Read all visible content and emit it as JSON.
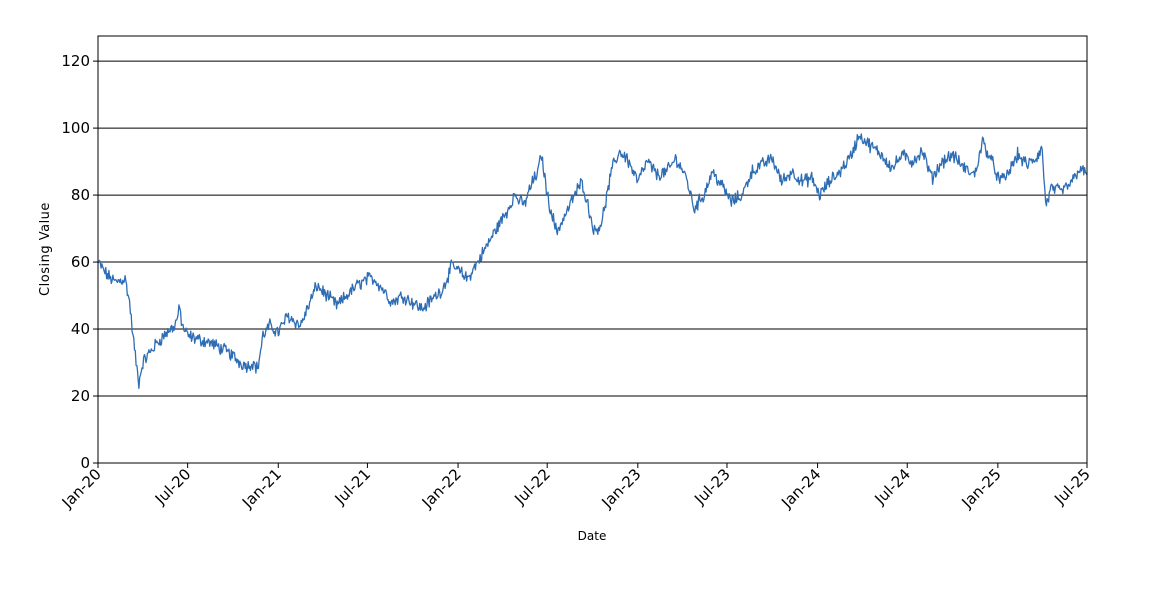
{
  "chart_data": {
    "type": "line",
    "title": "",
    "xlabel": "Date",
    "ylabel": "Closing Value",
    "xlim": [
      "2020-01-01",
      "2025-07-01"
    ],
    "ylim": [
      0,
      127.5
    ],
    "yticks": [
      0,
      20,
      40,
      60,
      80,
      100,
      120
    ],
    "xticks": [
      {
        "label": "Jan-20",
        "date": "2020-01-01"
      },
      {
        "label": "Jul-20",
        "date": "2020-07-01"
      },
      {
        "label": "Jan-21",
        "date": "2021-01-01"
      },
      {
        "label": "Jul-21",
        "date": "2021-07-01"
      },
      {
        "label": "Jan-22",
        "date": "2022-01-01"
      },
      {
        "label": "Jul-22",
        "date": "2022-07-01"
      },
      {
        "label": "Jan-23",
        "date": "2023-01-01"
      },
      {
        "label": "Jul-23",
        "date": "2023-07-01"
      },
      {
        "label": "Jan-24",
        "date": "2024-01-01"
      },
      {
        "label": "Jul-24",
        "date": "2024-07-01"
      },
      {
        "label": "Jan-25",
        "date": "2025-01-01"
      },
      {
        "label": "Jul-25",
        "date": "2025-07-01"
      }
    ],
    "grid": "horizontal",
    "line_color": "#2e6db4",
    "series": [
      {
        "x": [
          "2020-01-01",
          "2020-01-20",
          "2020-02-05",
          "2020-02-25",
          "2020-03-05",
          "2020-03-12",
          "2020-03-20",
          "2020-03-24",
          "2020-04-01",
          "2020-04-15",
          "2020-05-01",
          "2020-05-20",
          "2020-06-05",
          "2020-06-15",
          "2020-06-20",
          "2020-07-01",
          "2020-07-20",
          "2020-08-15",
          "2020-09-10",
          "2020-10-01",
          "2020-10-15",
          "2020-11-01",
          "2020-11-10",
          "2020-11-20",
          "2020-12-01",
          "2020-12-15",
          "2021-01-01",
          "2021-01-20",
          "2021-02-15",
          "2021-03-01",
          "2021-03-20",
          "2021-04-10",
          "2021-05-01",
          "2021-05-20",
          "2021-06-10",
          "2021-07-01",
          "2021-07-15",
          "2021-08-01",
          "2021-08-20",
          "2021-09-10",
          "2021-10-01",
          "2021-10-20",
          "2021-11-10",
          "2021-12-01",
          "2021-12-20",
          "2022-01-05",
          "2022-01-20",
          "2022-02-10",
          "2022-03-01",
          "2022-03-20",
          "2022-04-10",
          "2022-04-25",
          "2022-05-15",
          "2022-06-01",
          "2022-06-10",
          "2022-06-20",
          "2022-07-01",
          "2022-07-20",
          "2022-08-10",
          "2022-08-25",
          "2022-09-10",
          "2022-09-25",
          "2022-10-05",
          "2022-10-20",
          "2022-11-10",
          "2022-11-25",
          "2022-12-10",
          "2023-01-01",
          "2023-01-20",
          "2023-02-10",
          "2023-03-01",
          "2023-03-20",
          "2023-04-10",
          "2023-04-25",
          "2023-05-15",
          "2023-06-01",
          "2023-06-20",
          "2023-07-10",
          "2023-08-01",
          "2023-08-20",
          "2023-09-10",
          "2023-10-01",
          "2023-10-20",
          "2023-11-10",
          "2023-12-01",
          "2023-12-20",
          "2024-01-05",
          "2024-01-25",
          "2024-02-15",
          "2024-03-10",
          "2024-03-25",
          "2024-04-15",
          "2024-05-10",
          "2024-06-01",
          "2024-06-20",
          "2024-07-10",
          "2024-08-01",
          "2024-08-20",
          "2024-09-10",
          "2024-10-01",
          "2024-10-25",
          "2024-11-15",
          "2024-12-01",
          "2024-12-20",
          "2025-01-05",
          "2025-01-20",
          "2025-02-10",
          "2025-03-01",
          "2025-03-20",
          "2025-04-01",
          "2025-04-08",
          "2025-04-20",
          "2025-05-10",
          "2025-06-01",
          "2025-06-15",
          "2025-07-01"
        ],
        "y": [
          60,
          56,
          54,
          55,
          48,
          38,
          28,
          24,
          30,
          33,
          36,
          39,
          41,
          46,
          41,
          38,
          37,
          36,
          34,
          32,
          30,
          29,
          30,
          28,
          38,
          41,
          39,
          44,
          41,
          46,
          53,
          50,
          47,
          50,
          53,
          55,
          55,
          52,
          48,
          50,
          48,
          46,
          49,
          52,
          59,
          57,
          55,
          60,
          65,
          70,
          75,
          80,
          77,
          84,
          86,
          92,
          80,
          69,
          75,
          80,
          84,
          75,
          69,
          72,
          88,
          93,
          91,
          84,
          90,
          86,
          87,
          91,
          85,
          76,
          80,
          87,
          83,
          78,
          80,
          87,
          89,
          91,
          84,
          87,
          84,
          85,
          80,
          84,
          87,
          92,
          98,
          95,
          92,
          88,
          92,
          90,
          93,
          85,
          90,
          92,
          88,
          86,
          96,
          90,
          84,
          86,
          92,
          89,
          91,
          94,
          77,
          82,
          81,
          84,
          88,
          86
        ]
      }
    ]
  }
}
